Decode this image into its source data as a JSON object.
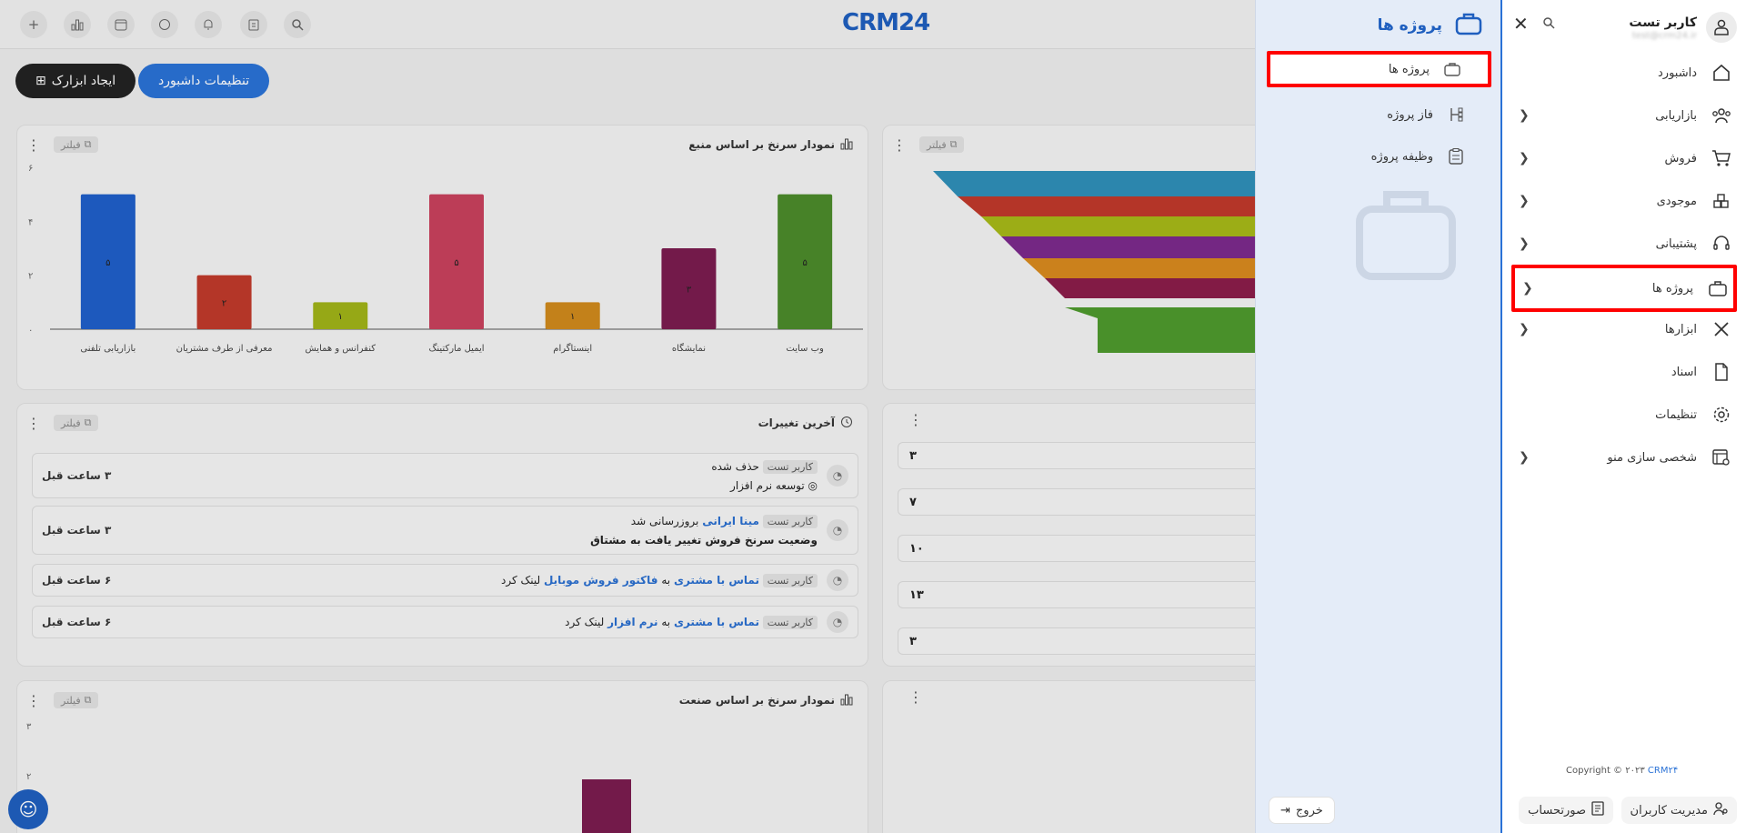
{
  "topbar": {
    "brand": "CRM24",
    "icons": [
      "plus-icon",
      "chart-icon",
      "calendar-icon",
      "chat-icon",
      "bell-icon",
      "clipboard-icon",
      "search-icon"
    ]
  },
  "actions": {
    "create_widget": "ایجاد ابزارک",
    "dashboard_settings": "تنظیمات داشبورد"
  },
  "common": {
    "filter": "فیلتر"
  },
  "chart_source": {
    "title": "نمودار سرنخ بر اساس منبع",
    "chart_data": {
      "type": "bar",
      "categories": [
        "وب سایت",
        "نمایشگاه",
        "اینستاگرام",
        "ایمیل مارکتینگ",
        "کنفرانس و همایش",
        "معرفی از طرف مشتریان",
        "بازاریابی تلفنی"
      ],
      "values": [
        5,
        3,
        1,
        5,
        1,
        2,
        5
      ],
      "value_labels": [
        "۵",
        "۳",
        "۱",
        "۵",
        "۱",
        "۲",
        "۵"
      ],
      "colors": [
        "#4c8b2b",
        "#7b1c4f",
        "#d08a1c",
        "#c8415d",
        "#a0b318",
        "#c03a2b",
        "#1f5fc9"
      ],
      "y_ticks": [
        "۰",
        "۲",
        "۴",
        "۶"
      ],
      "ylim": [
        0,
        6
      ]
    }
  },
  "changes": {
    "title": "آخرین تغییرات",
    "rows": [
      {
        "user": "کاربر تست",
        "action": "حذف شده",
        "line2": "توسعه نرم افزار",
        "time": "۳ ساعت قبل"
      },
      {
        "user": "کاربر تست",
        "link": "مینا ایرانی",
        "action": "بروزرسانی شد",
        "line2": "وضعیت سرنخ فروش تغییر یافت به مشتاق",
        "time": "۳ ساعت قبل"
      },
      {
        "user": "کاربر تست",
        "link": "تماس با مشتری",
        "mid": "به",
        "link2": "فاکتور فروش موبایل",
        "action": "لینک کرد",
        "time": "۶ ساعت قبل"
      },
      {
        "user": "کاربر تست",
        "link": "تماس با مشتری",
        "mid": "به",
        "link2": "نرم افزار",
        "action": "لینک کرد",
        "time": "۶ ساعت قبل"
      }
    ]
  },
  "numbers_card": {
    "values": [
      "۳",
      "۷",
      "۱۰",
      "۱۳",
      "۳"
    ]
  },
  "chart_industry": {
    "title": "نمودار سرنخ بر اساس صنعت",
    "y_ticks": [
      "۳",
      "۲"
    ]
  },
  "subpanel": {
    "title": "پروژه ها",
    "items": [
      {
        "label": "پروژه ها"
      },
      {
        "label": "فاز پروژه"
      },
      {
        "label": "وظیفه پروژه"
      }
    ],
    "logout": "خروج"
  },
  "sidebar": {
    "user_name": "کاربر تست",
    "user_sub": "test@crm24.ir",
    "items": [
      {
        "label": "داشبورد"
      },
      {
        "label": "بازاریابی"
      },
      {
        "label": "فروش"
      },
      {
        "label": "موجودی"
      },
      {
        "label": "پشتیبانی"
      },
      {
        "label": "پروژه ها"
      },
      {
        "label": "ابزارها"
      },
      {
        "label": "اسناد"
      },
      {
        "label": "تنظیمات"
      },
      {
        "label": "شخصی سازی منو"
      }
    ],
    "copyright_prefix": "Copyright © ۲۰۲۳",
    "copyright_brand": "CRM۲۴",
    "user_management": "مدیریت کاربران",
    "invoice": "صورتحساب"
  }
}
